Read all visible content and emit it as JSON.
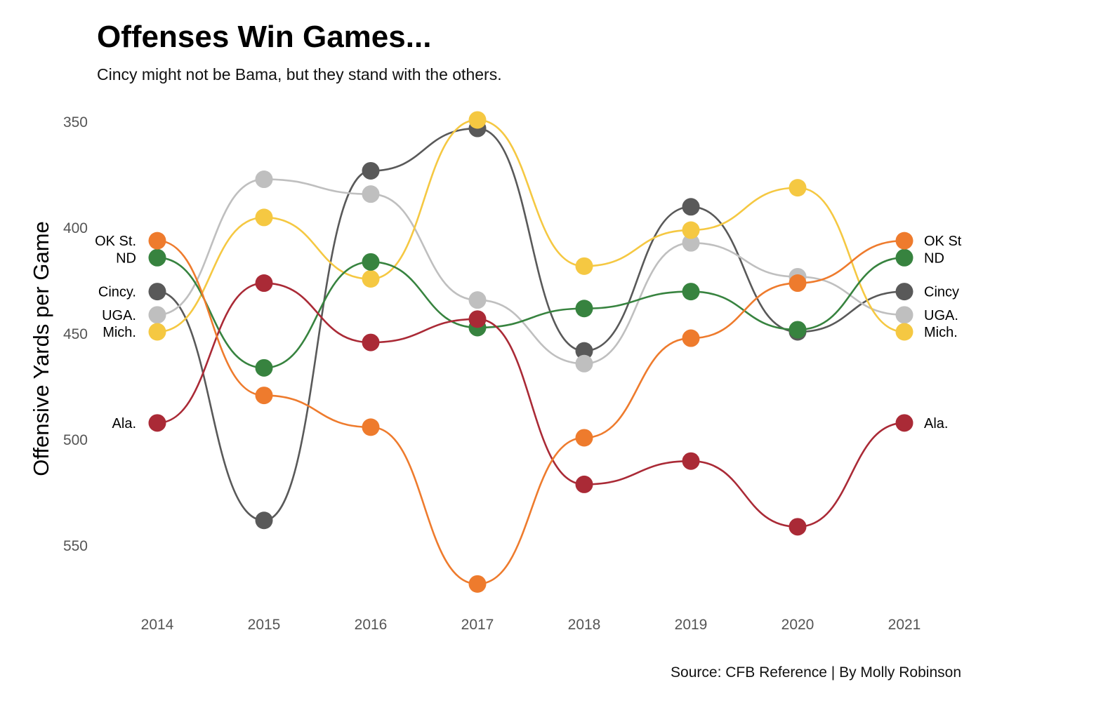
{
  "title": "Offenses Win Games...",
  "subtitle": "Cincy might not be Bama, but they stand with the others.",
  "caption": "Source: CFB Reference | By Molly Robinson",
  "chart_data": {
    "type": "line",
    "title": "Offenses Win Games...",
    "subtitle": "Cincy might not be Bama, but they stand with the others.",
    "xlabel": "",
    "ylabel": "Offensive Yards per Game",
    "y_reversed": true,
    "ylim": [
      341,
      574
    ],
    "yticks": [
      350,
      400,
      450,
      500,
      550
    ],
    "x": [
      2014,
      2015,
      2016,
      2017,
      2018,
      2019,
      2020,
      2021
    ],
    "grid": false,
    "series": [
      {
        "label_left": "Cincy.",
        "label_right": "Cincy",
        "color": "#595959",
        "values": [
          430,
          538,
          373,
          353,
          458,
          390,
          449,
          430
        ]
      },
      {
        "label_left": "UGA.",
        "label_right": "UGA.",
        "color": "#bfbfbf",
        "values": [
          441,
          377,
          384,
          434,
          464,
          407,
          423,
          441
        ]
      },
      {
        "label_left": "Mich.",
        "label_right": "Mich.",
        "color": "#f5c842",
        "values": [
          449,
          395,
          424,
          349,
          418,
          401,
          381,
          449
        ]
      },
      {
        "label_left": "ND",
        "label_right": "ND",
        "color": "#37833f",
        "values": [
          414,
          466,
          416,
          447,
          438,
          430,
          448,
          414
        ]
      },
      {
        "label_left": "Ala.",
        "label_right": "Ala.",
        "color": "#aa2a36",
        "values": [
          492,
          426,
          454,
          443,
          521,
          510,
          541,
          492
        ]
      },
      {
        "label_left": "OK St.",
        "label_right": "OK St",
        "color": "#ee7b2d",
        "values": [
          406,
          479,
          494,
          568,
          499,
          452,
          426,
          406
        ]
      }
    ]
  }
}
